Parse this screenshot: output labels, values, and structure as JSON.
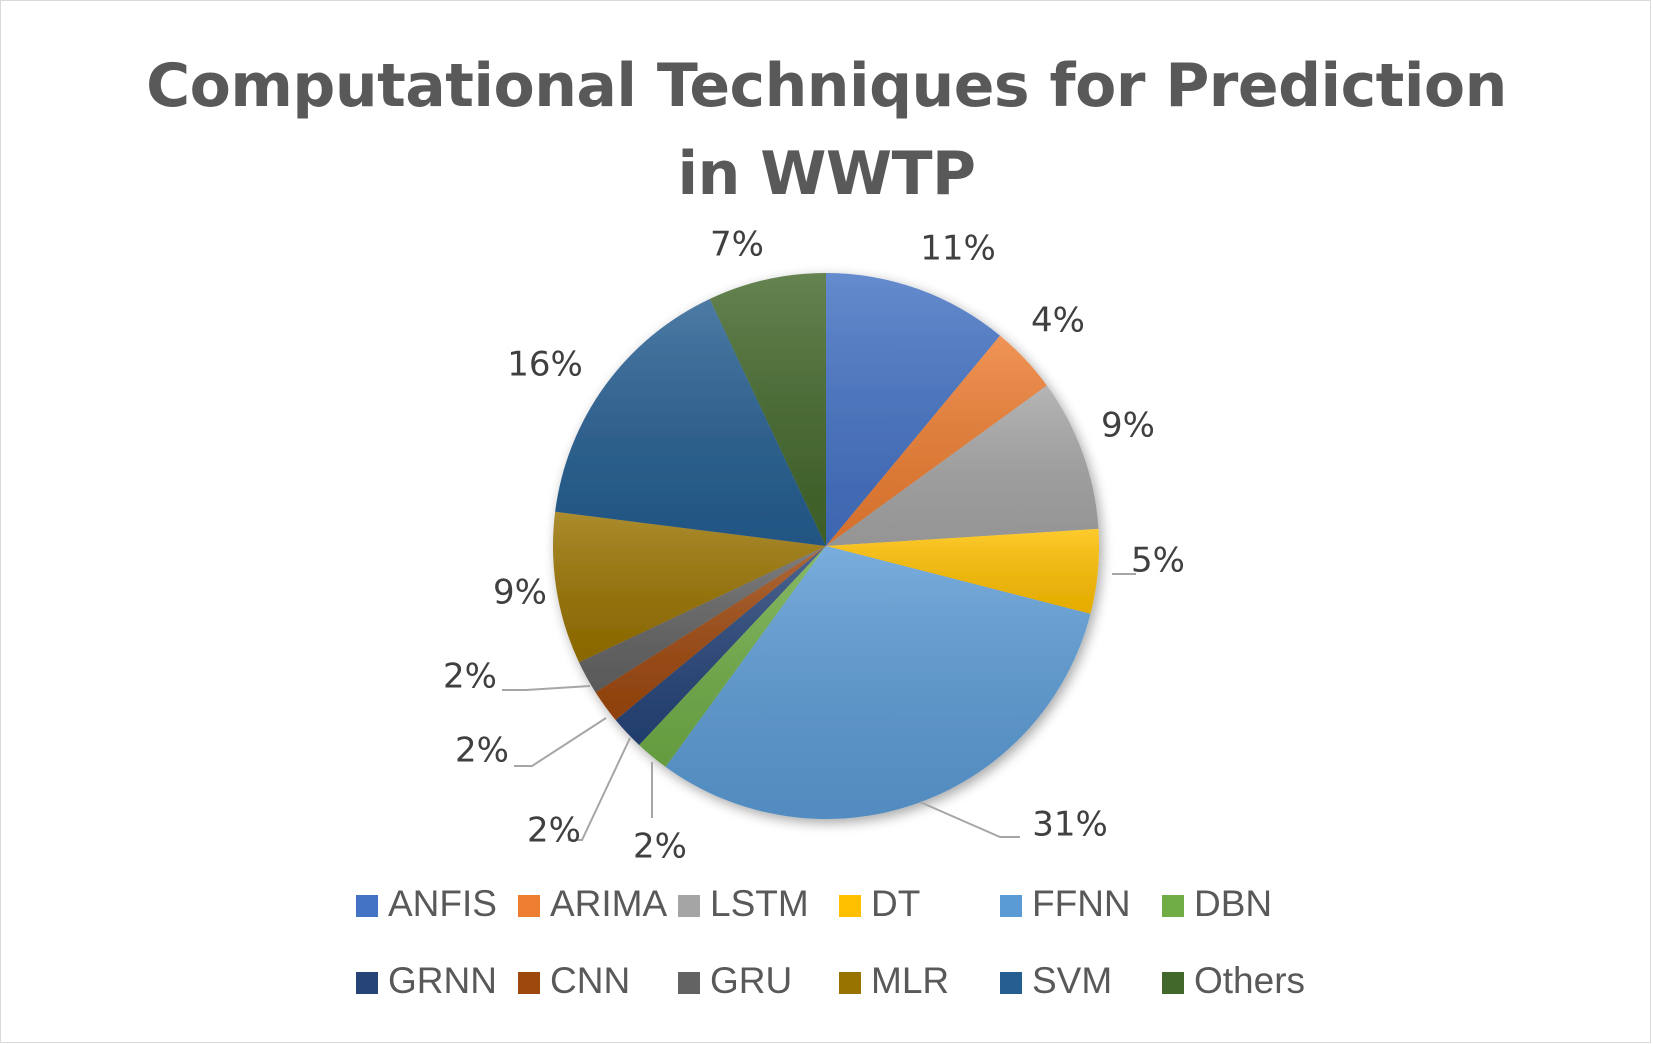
{
  "chart_data": {
    "type": "pie",
    "title_lines": [
      "Computational Techniques for Prediction",
      "in WWTP"
    ],
    "series": [
      {
        "name": "ANFIS",
        "value": 11,
        "label": "11%",
        "color": "#4472C4"
      },
      {
        "name": "ARIMA",
        "value": 4,
        "label": "4%",
        "color": "#ED7D31"
      },
      {
        "name": "LSTM",
        "value": 9,
        "label": "9%",
        "color": "#A5A5A5"
      },
      {
        "name": "DT",
        "value": 5,
        "label": "5%",
        "color": "#FFC000"
      },
      {
        "name": "FFNN",
        "value": 31,
        "label": "31%",
        "color": "#5B9BD5"
      },
      {
        "name": "DBN",
        "value": 2,
        "label": "2%",
        "color": "#70AD47"
      },
      {
        "name": "GRNN",
        "value": 2,
        "label": "2%",
        "color": "#264478"
      },
      {
        "name": "CNN",
        "value": 2,
        "label": "2%",
        "color": "#9E480E"
      },
      {
        "name": "GRU",
        "value": 2,
        "label": "2%",
        "color": "#636363"
      },
      {
        "name": "MLR",
        "value": 9,
        "label": "9%",
        "color": "#997300"
      },
      {
        "name": "SVM",
        "value": 16,
        "label": "16%",
        "color": "#255E91"
      },
      {
        "name": "Others",
        "value": 7,
        "label": "7%",
        "color": "#43682B"
      }
    ],
    "legend_position": "bottom"
  }
}
